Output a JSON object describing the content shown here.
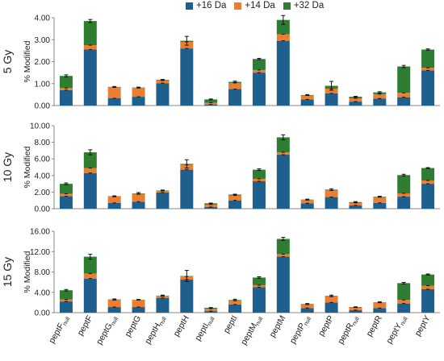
{
  "chart_data": {
    "type": "bar",
    "stacked": true,
    "grid": false,
    "legend_position": "top-center",
    "ylabel": "% Modified",
    "categories": [
      "peptF_null",
      "peptF",
      "peptG_null",
      "peptG",
      "peptH_null",
      "peptH",
      "peptI_null",
      "peptI",
      "peptM_null",
      "peptM",
      "peptP_null",
      "peptP",
      "peptR_null",
      "peptR",
      "peptY_null",
      "peptY"
    ],
    "category_labels": [
      {
        "base": "peptF",
        "sub": "null"
      },
      {
        "base": "peptF",
        "sub": ""
      },
      {
        "base": "peptG",
        "sub": "null"
      },
      {
        "base": "peptG",
        "sub": ""
      },
      {
        "base": "peptH",
        "sub": "null"
      },
      {
        "base": "peptH",
        "sub": ""
      },
      {
        "base": "peptI",
        "sub": "null"
      },
      {
        "base": "peptI",
        "sub": ""
      },
      {
        "base": "peptM",
        "sub": "null"
      },
      {
        "base": "peptM",
        "sub": ""
      },
      {
        "base": "peptP",
        "sub": "null"
      },
      {
        "base": "peptP",
        "sub": ""
      },
      {
        "base": "peptR",
        "sub": "null"
      },
      {
        "base": "peptR",
        "sub": ""
      },
      {
        "base": "peptY",
        "sub": "null"
      },
      {
        "base": "peptY",
        "sub": ""
      }
    ],
    "series_names": [
      "+16 Da",
      "+14 Da",
      "+32 Da"
    ],
    "colors": [
      "#1f5f8b",
      "#ed7d31",
      "#2e7d32"
    ],
    "panels": [
      {
        "label": "5 Gy",
        "ylim": [
          0,
          4.0
        ],
        "yticks": [
          "0.00",
          "1.00",
          "2.00",
          "3.00",
          "4.00"
        ],
        "series": [
          {
            "name": "+16 Da",
            "values": [
              0.7,
              2.55,
              0.33,
              0.4,
              1.02,
              2.6,
              0.05,
              0.75,
              1.5,
              2.95,
              0.28,
              0.55,
              0.18,
              0.32,
              0.38,
              1.6
            ]
          },
          {
            "name": "+14 Da",
            "values": [
              0.1,
              0.2,
              0.5,
              0.4,
              0.12,
              0.3,
              0.08,
              0.28,
              0.12,
              0.3,
              0.18,
              0.22,
              0.15,
              0.2,
              0.2,
              0.12
            ]
          },
          {
            "name": "+32 Da",
            "values": [
              0.55,
              1.1,
              0.02,
              0.02,
              0.03,
              0.05,
              0.15,
              0.05,
              0.5,
              0.65,
              0.02,
              0.13,
              0.07,
              0.08,
              1.2,
              0.83
            ]
          }
        ],
        "errors": [
          0.05,
          0.07,
          0.02,
          0.02,
          0.02,
          0.2,
          0.02,
          0.03,
          0.03,
          0.2,
          0.02,
          0.2,
          0.02,
          0.03,
          0.05,
          0.03
        ]
      },
      {
        "label": "10 Gy",
        "ylim": [
          0,
          10.0
        ],
        "yticks": [
          "0.00",
          "2.00",
          "4.00",
          "6.00",
          "8.00",
          "10.00"
        ],
        "series": [
          {
            "name": "+16 Da",
            "values": [
              1.5,
              4.3,
              0.7,
              0.85,
              1.95,
              4.7,
              0.2,
              1.0,
              3.3,
              6.5,
              0.65,
              1.4,
              0.4,
              0.7,
              1.45,
              3.0
            ]
          },
          {
            "name": "+14 Da",
            "values": [
              0.3,
              0.6,
              0.75,
              0.95,
              0.2,
              0.6,
              0.3,
              0.6,
              0.3,
              0.3,
              0.4,
              0.8,
              0.3,
              0.7,
              0.4,
              0.4
            ]
          },
          {
            "name": "+32 Da",
            "values": [
              1.2,
              1.9,
              0.05,
              0.05,
              0.05,
              0.1,
              0.15,
              0.1,
              1.1,
              1.8,
              0.05,
              0.1,
              0.1,
              0.05,
              2.2,
              1.5
            ]
          }
        ],
        "errors": [
          0.1,
          0.3,
          0.05,
          0.1,
          0.05,
          0.5,
          0.03,
          0.05,
          0.1,
          0.3,
          0.05,
          0.1,
          0.05,
          0.05,
          0.1,
          0.05
        ]
      },
      {
        "label": "15 Gy",
        "ylim": [
          0,
          16.0
        ],
        "yticks": [
          "0.00",
          "4.00",
          "8.00",
          "12.00",
          "16.00"
        ],
        "series": [
          {
            "name": "+16 Da",
            "values": [
              2.2,
              6.7,
              1.1,
              1.1,
              2.9,
              6.5,
              0.3,
              1.6,
              5.0,
              11.0,
              0.9,
              2.0,
              0.5,
              0.9,
              1.8,
              4.6
            ]
          },
          {
            "name": "+14 Da",
            "values": [
              0.4,
              1.0,
              1.4,
              1.4,
              0.4,
              0.6,
              0.5,
              0.8,
              0.4,
              0.5,
              0.7,
              1.2,
              0.5,
              1.1,
              0.7,
              0.7
            ]
          },
          {
            "name": "+32 Da",
            "values": [
              1.8,
              3.3,
              0.1,
              0.05,
              0.05,
              0.1,
              0.15,
              0.1,
              1.5,
              3.0,
              0.1,
              0.1,
              0.1,
              0.05,
              3.3,
              2.2
            ]
          }
        ],
        "errors": [
          0.15,
          0.5,
          0.1,
          0.05,
          0.1,
          1.1,
          0.05,
          0.15,
          0.15,
          0.3,
          0.1,
          0.15,
          0.05,
          0.1,
          0.15,
          0.1
        ]
      }
    ]
  }
}
